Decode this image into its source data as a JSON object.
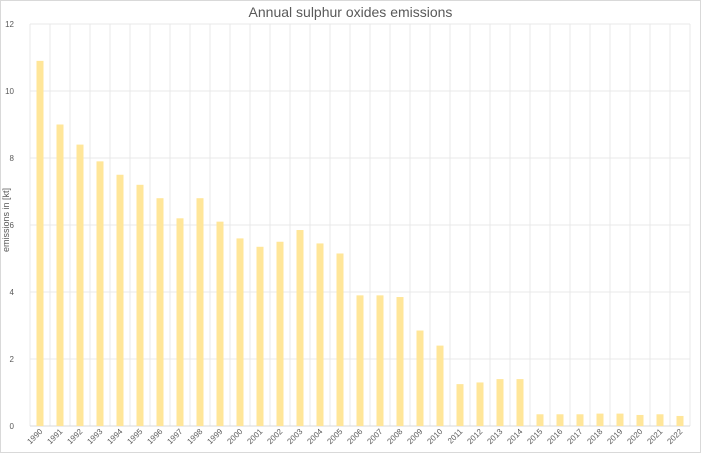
{
  "chart_data": {
    "type": "bar",
    "title": "Annual sulphur oxides emissions",
    "xlabel": "",
    "ylabel": "emissions in [kt]",
    "ylim": [
      0,
      12
    ],
    "yticks": [
      0,
      2,
      4,
      6,
      8,
      10,
      12
    ],
    "grid": "vertical and horizontal",
    "legend": "none",
    "bar_color": "#FFE699",
    "grid_color": "#e8e8e8",
    "categories": [
      "1990",
      "1991",
      "1992",
      "1993",
      "1994",
      "1995",
      "1996",
      "1997",
      "1998",
      "1999",
      "2000",
      "2001",
      "2002",
      "2003",
      "2004",
      "2005",
      "2006",
      "2007",
      "2008",
      "2009",
      "2010",
      "2011",
      "2012",
      "2013",
      "2014",
      "2015",
      "2016",
      "2017",
      "2018",
      "2019",
      "2020",
      "2021",
      "2022"
    ],
    "values": [
      10.9,
      9.0,
      8.4,
      7.9,
      7.5,
      7.2,
      6.8,
      6.2,
      6.8,
      6.1,
      5.6,
      5.35,
      5.5,
      5.85,
      5.45,
      5.15,
      3.9,
      3.9,
      3.85,
      2.85,
      2.4,
      1.25,
      1.3,
      1.4,
      1.4,
      0.35,
      0.35,
      0.35,
      0.37,
      0.37,
      0.33,
      0.35,
      0.3
    ]
  }
}
